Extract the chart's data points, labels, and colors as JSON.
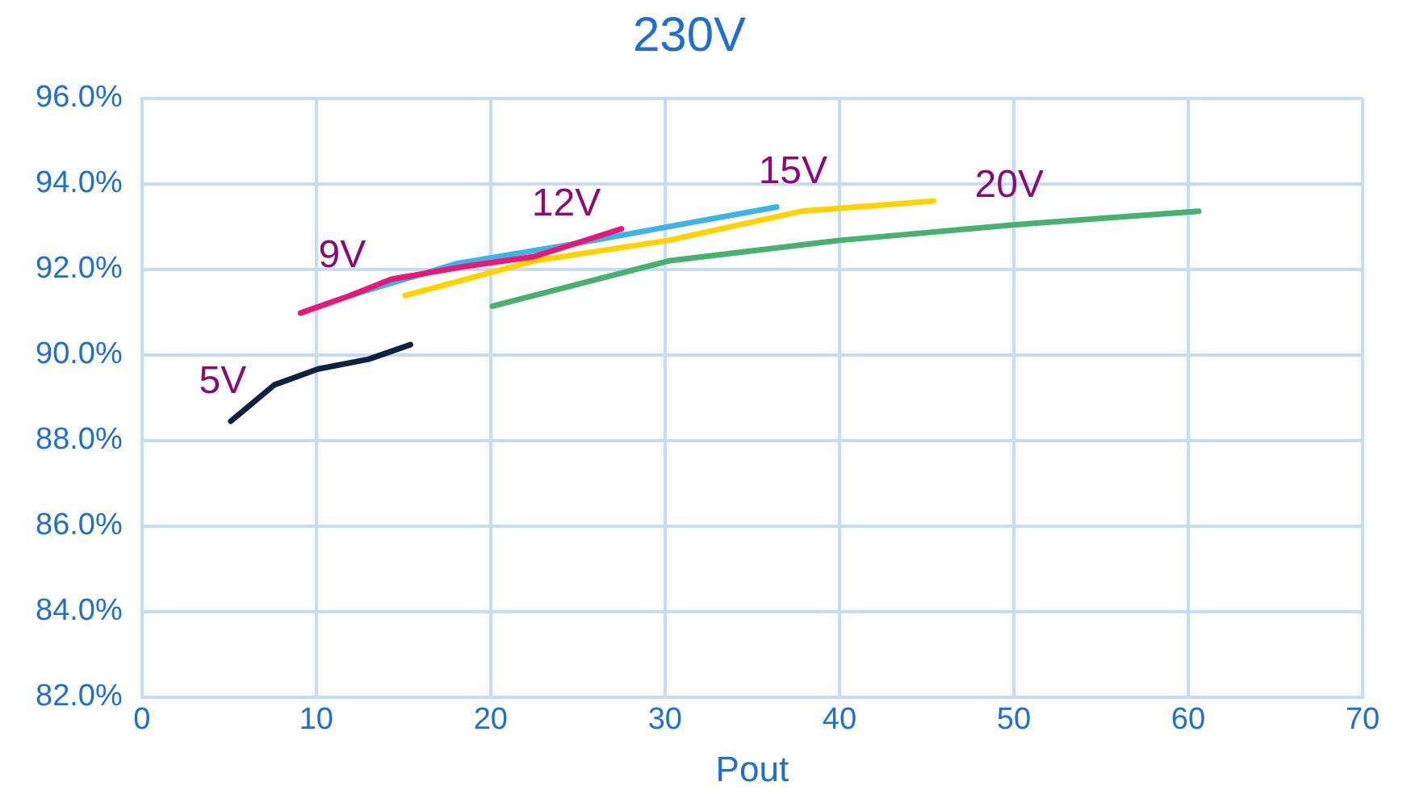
{
  "chart_data": {
    "type": "line",
    "title": "230V",
    "xlabel": "Pout",
    "xlim": [
      0,
      70
    ],
    "xticks": [
      0,
      10,
      20,
      30,
      40,
      50,
      60,
      70
    ],
    "ylim": [
      82,
      96
    ],
    "yticks": [
      {
        "value": 82,
        "label": "82.0%"
      },
      {
        "value": 84,
        "label": "84.0%"
      },
      {
        "value": 86,
        "label": "86.0%"
      },
      {
        "value": 88,
        "label": "88.0%"
      },
      {
        "value": 90,
        "label": "90.0%"
      },
      {
        "value": 92,
        "label": "92.0%"
      },
      {
        "value": 94,
        "label": "94.0%"
      },
      {
        "value": 96,
        "label": "96.0%"
      }
    ],
    "grid": true,
    "legend": false,
    "marker": "none",
    "line_style": "solid",
    "series": [
      {
        "name": "5V",
        "color": "#0d2240",
        "x": [
          5.1,
          7.6,
          10.1,
          13,
          15.4
        ],
        "values": [
          88.45,
          89.3,
          89.67,
          89.9,
          90.24
        ]
      },
      {
        "name": "9V",
        "color": "#e6197a",
        "x": [
          9.1,
          11.95,
          14.3,
          18.5,
          22.5,
          27.5
        ],
        "values": [
          90.98,
          91.39,
          91.77,
          92.07,
          92.3,
          92.95
        ]
      },
      {
        "name": "12V",
        "color": "#3cb4e6",
        "x": [
          11.95,
          18.1,
          24.8,
          30.2,
          36.4
        ],
        "values": [
          91.39,
          92.14,
          92.6,
          93.0,
          93.46
        ]
      },
      {
        "name": "15V",
        "color": "#ffd200",
        "x": [
          15.1,
          22.5,
          30.2,
          37.8,
          45.4
        ],
        "values": [
          91.39,
          92.2,
          92.68,
          93.36,
          93.6
        ]
      },
      {
        "name": "20V",
        "color": "#49b170",
        "x": [
          20.1,
          30.2,
          40,
          50.2,
          60.6
        ],
        "values": [
          91.14,
          92.2,
          92.68,
          93.05,
          93.36
        ]
      }
    ]
  }
}
